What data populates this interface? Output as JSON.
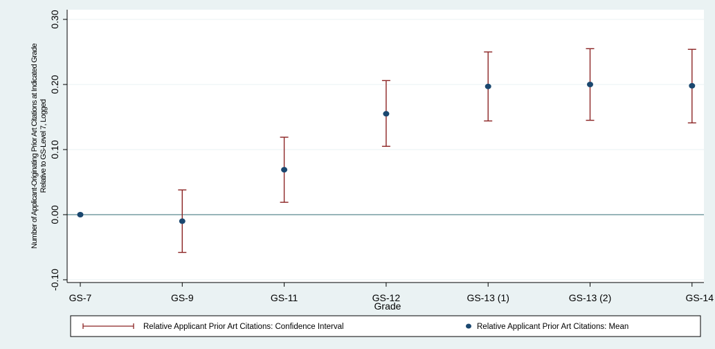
{
  "chart_data": {
    "type": "scatter",
    "categories": [
      "GS-7",
      "GS-9",
      "GS-11",
      "GS-12",
      "GS-13 (1)",
      "GS-13 (2)",
      "GS-14"
    ],
    "series": [
      {
        "name": "Relative Applicant Prior Art Citations: Mean",
        "values": [
          0.0,
          -0.01,
          0.069,
          0.155,
          0.197,
          0.2,
          0.198
        ]
      },
      {
        "name": "Relative Applicant Prior Art Citations: Confidence Interval",
        "lower": [
          0.0,
          -0.058,
          0.019,
          0.105,
          0.144,
          0.145,
          0.141
        ],
        "upper": [
          0.0,
          0.038,
          0.119,
          0.206,
          0.25,
          0.255,
          0.254
        ]
      }
    ],
    "xlabel": "Grade",
    "ylabel_line1": "Number of Applicant-Originating Prior Art Citations at Indicated Grade",
    "ylabel_line2": "Relative to GS-Level 7, Logged",
    "ylim": [
      -0.1,
      0.3
    ],
    "yticks": [
      "-0.10",
      "0.00",
      "0.10",
      "0.20",
      "0.30"
    ],
    "ytick_values": [
      -0.1,
      0.0,
      0.1,
      0.2,
      0.3
    ],
    "reference_line": 0.0,
    "grid": true,
    "legend_position": "bottom",
    "colors": {
      "ci": "#8b2323",
      "mean": "#1a476f",
      "reference": "#2f6b73",
      "grid": "#eaf2f3",
      "plot_bg": "#ffffff",
      "page_bg": "#eaf2f3"
    }
  }
}
